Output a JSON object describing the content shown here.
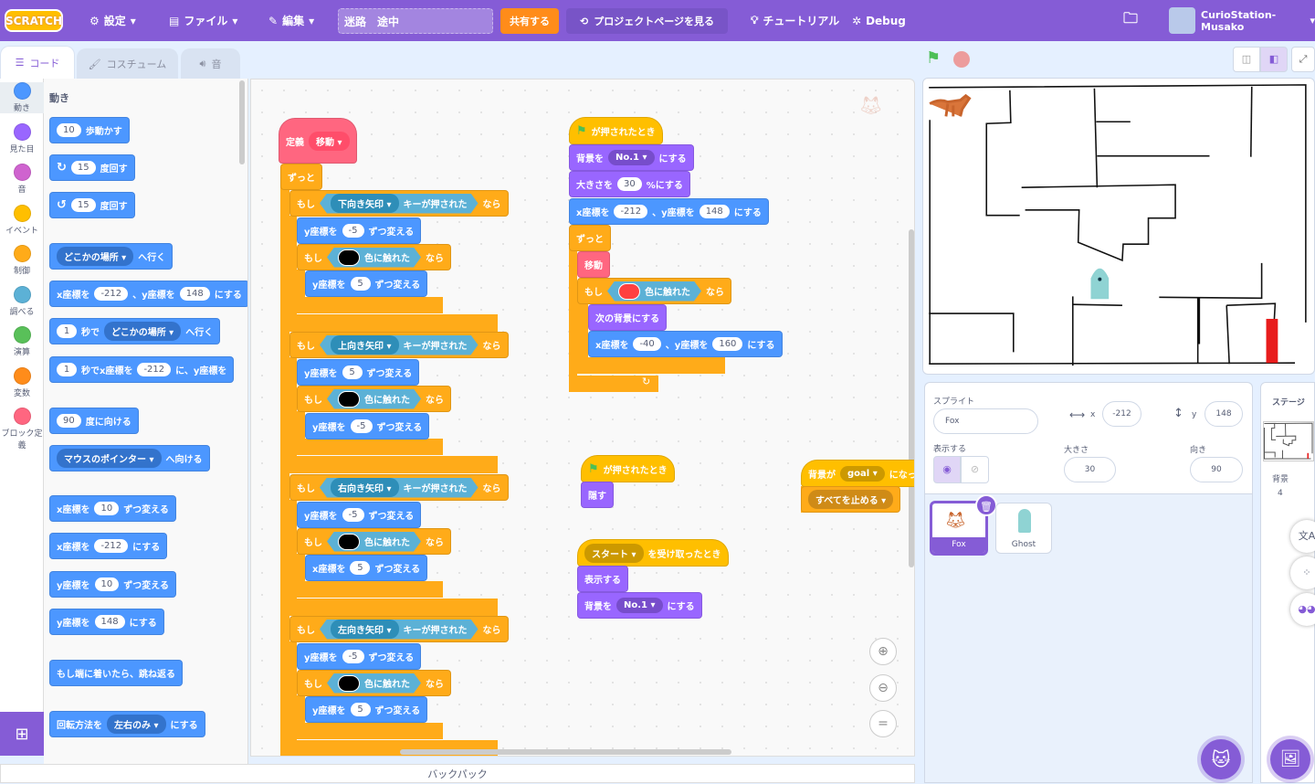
{
  "topbar": {
    "logo": "SCRATCH",
    "settings": "設定",
    "file": "ファイル",
    "edit": "編集",
    "project_title": "迷路　途中",
    "share": "共有する",
    "project_page": "プロジェクトページを見る",
    "tutorial": "チュートリアル",
    "debug": "Debug",
    "username": "CurioStation-Musako"
  },
  "tabs": {
    "code": "コード",
    "costumes": "コスチューム",
    "sounds": "音"
  },
  "categories": [
    {
      "label": "動き",
      "color": "#4c97ff"
    },
    {
      "label": "見た目",
      "color": "#9966ff"
    },
    {
      "label": "音",
      "color": "#cf63cf"
    },
    {
      "label": "イベント",
      "color": "#ffbf00"
    },
    {
      "label": "制御",
      "color": "#ffab19"
    },
    {
      "label": "調べる",
      "color": "#5cb1d6"
    },
    {
      "label": "演算",
      "color": "#59c059"
    },
    {
      "label": "変数",
      "color": "#ff8c1a"
    },
    {
      "label": "ブロック定義",
      "color": "#ff6680"
    }
  ],
  "block_colors": {
    "motion": "#4c97ff",
    "looks": "#9966ff",
    "events": "#ffbf00",
    "control": "#ffab19",
    "sensing": "#5cb1d6",
    "myblocks": "#ff6680"
  },
  "palette": {
    "section_title": "動き",
    "blocks": [
      {
        "cat": "motion",
        "parts": [
          {
            "n": "10"
          },
          {
            "t": "歩動かす"
          }
        ]
      },
      {
        "cat": "motion",
        "parts": [
          {
            "icon": "↻"
          },
          {
            "n": "15"
          },
          {
            "t": "度回す"
          }
        ]
      },
      {
        "cat": "motion",
        "parts": [
          {
            "icon": "↺"
          },
          {
            "n": "15"
          },
          {
            "t": "度回す"
          }
        ]
      },
      {
        "cat": "motion",
        "parts": [
          {
            "d": "どこかの場所"
          },
          {
            "t": "へ行く"
          }
        ]
      },
      {
        "cat": "motion",
        "parts": [
          {
            "t": "x座標を"
          },
          {
            "n": "-212"
          },
          {
            "t": "、y座標を"
          },
          {
            "n": "148"
          },
          {
            "t": "にする"
          }
        ]
      },
      {
        "cat": "motion",
        "parts": [
          {
            "n": "1"
          },
          {
            "t": "秒で"
          },
          {
            "d": "どこかの場所"
          },
          {
            "t": "へ行く"
          }
        ]
      },
      {
        "cat": "motion",
        "parts": [
          {
            "n": "1"
          },
          {
            "t": "秒でx座標を"
          },
          {
            "n": "-212"
          },
          {
            "t": "に、y座標を"
          }
        ]
      },
      {
        "cat": "motion",
        "parts": [
          {
            "n": "90"
          },
          {
            "t": "度に向ける"
          }
        ]
      },
      {
        "cat": "motion",
        "parts": [
          {
            "d": "マウスのポインター"
          },
          {
            "t": "へ向ける"
          }
        ]
      },
      {
        "cat": "motion",
        "parts": [
          {
            "t": "x座標を"
          },
          {
            "n": "10"
          },
          {
            "t": "ずつ変える"
          }
        ]
      },
      {
        "cat": "motion",
        "parts": [
          {
            "t": "x座標を"
          },
          {
            "n": "-212"
          },
          {
            "t": "にする"
          }
        ]
      },
      {
        "cat": "motion",
        "parts": [
          {
            "t": "y座標を"
          },
          {
            "n": "10"
          },
          {
            "t": "ずつ変える"
          }
        ]
      },
      {
        "cat": "motion",
        "parts": [
          {
            "t": "y座標を"
          },
          {
            "n": "148"
          },
          {
            "t": "にする"
          }
        ]
      },
      {
        "cat": "motion",
        "parts": [
          {
            "t": "もし端に着いたら、跳ね返る"
          }
        ]
      },
      {
        "cat": "motion",
        "parts": [
          {
            "t": "回転方法を"
          },
          {
            "d": "左右のみ"
          },
          {
            "t": "にする"
          }
        ]
      }
    ]
  },
  "scripts": [
    {
      "blocks": [
        {
          "cat": "myblocks",
          "hat": true,
          "parts": [
            {
              "t": "定義"
            },
            {
              "d": "移動"
            }
          ]
        },
        {
          "cat": "control",
          "parts": [
            {
              "t": "ずっと"
            }
          ]
        },
        {
          "cat": "control",
          "parts": [
            {
              "t": "もし"
            },
            {
              "b": [
                {
                  "d": "下向き矢印"
                },
                {
                  "t": "キーが押された"
                }
              ]
            },
            {
              "t": "なら"
            }
          ]
        },
        {
          "cat": "motion",
          "parts": [
            {
              "t": "y座標を"
            },
            {
              "n": "-5"
            },
            {
              "t": "ずつ変える"
            }
          ]
        },
        {
          "cat": "control",
          "parts": [
            {
              "t": "もし"
            },
            {
              "b": [
                {
                  "c": "#000000"
                },
                {
                  "t": "色に触れた"
                }
              ]
            },
            {
              "t": "なら"
            }
          ]
        },
        {
          "cat": "motion",
          "parts": [
            {
              "t": "y座標を"
            },
            {
              "n": "5"
            },
            {
              "t": "ずつ変える"
            }
          ]
        },
        {
          "cat": "control",
          "parts": [
            {
              "t": "もし"
            },
            {
              "b": [
                {
                  "d": "上向き矢印"
                },
                {
                  "t": "キーが押された"
                }
              ]
            },
            {
              "t": "なら"
            }
          ]
        },
        {
          "cat": "motion",
          "parts": [
            {
              "t": "y座標を"
            },
            {
              "n": "5"
            },
            {
              "t": "ずつ変える"
            }
          ]
        },
        {
          "cat": "control",
          "parts": [
            {
              "t": "もし"
            },
            {
              "b": [
                {
                  "c": "#000000"
                },
                {
                  "t": "色に触れた"
                }
              ]
            },
            {
              "t": "なら"
            }
          ]
        },
        {
          "cat": "motion",
          "parts": [
            {
              "t": "y座標を"
            },
            {
              "n": "-5"
            },
            {
              "t": "ずつ変える"
            }
          ]
        },
        {
          "cat": "control",
          "parts": [
            {
              "t": "もし"
            },
            {
              "b": [
                {
                  "d": "右向き矢印"
                },
                {
                  "t": "キーが押された"
                }
              ]
            },
            {
              "t": "なら"
            }
          ]
        },
        {
          "cat": "motion",
          "parts": [
            {
              "t": "y座標を"
            },
            {
              "n": "-5"
            },
            {
              "t": "ずつ変える"
            }
          ]
        },
        {
          "cat": "control",
          "parts": [
            {
              "t": "もし"
            },
            {
              "b": [
                {
                  "c": "#000000"
                },
                {
                  "t": "色に触れた"
                }
              ]
            },
            {
              "t": "なら"
            }
          ]
        },
        {
          "cat": "motion",
          "parts": [
            {
              "t": "x座標を"
            },
            {
              "n": "5"
            },
            {
              "t": "ずつ変える"
            }
          ]
        },
        {
          "cat": "control",
          "parts": [
            {
              "t": "もし"
            },
            {
              "b": [
                {
                  "d": "左向き矢印"
                },
                {
                  "t": "キーが押された"
                }
              ]
            },
            {
              "t": "なら"
            }
          ]
        },
        {
          "cat": "motion",
          "parts": [
            {
              "t": "y座標を"
            },
            {
              "n": "-5"
            },
            {
              "t": "ずつ変える"
            }
          ]
        },
        {
          "cat": "control",
          "parts": [
            {
              "t": "もし"
            },
            {
              "b": [
                {
                  "c": "#000000"
                },
                {
                  "t": "色に触れた"
                }
              ]
            },
            {
              "t": "なら"
            }
          ]
        },
        {
          "cat": "motion",
          "parts": [
            {
              "t": "y座標を"
            },
            {
              "n": "5"
            },
            {
              "t": "ずつ変える"
            }
          ]
        }
      ]
    },
    {
      "blocks": [
        {
          "cat": "events",
          "hat": true,
          "parts": [
            {
              "icon": "⚑"
            },
            {
              "t": "が押されたとき"
            }
          ]
        },
        {
          "cat": "looks",
          "parts": [
            {
              "t": "背景を"
            },
            {
              "d": "No.1"
            },
            {
              "t": "にする"
            }
          ]
        },
        {
          "cat": "looks",
          "parts": [
            {
              "t": "大きさを"
            },
            {
              "n": "30"
            },
            {
              "t": "%にする"
            }
          ]
        },
        {
          "cat": "motion",
          "parts": [
            {
              "t": "x座標を"
            },
            {
              "n": "-212"
            },
            {
              "t": "、y座標を"
            },
            {
              "n": "148"
            },
            {
              "t": "にする"
            }
          ]
        },
        {
          "cat": "control",
          "parts": [
            {
              "t": "ずっと"
            }
          ]
        },
        {
          "cat": "myblocks",
          "parts": [
            {
              "t": "移動"
            }
          ]
        },
        {
          "cat": "control",
          "parts": [
            {
              "t": "もし"
            },
            {
              "b": [
                {
                  "c": "#ff4040"
                },
                {
                  "t": "色に触れた"
                }
              ]
            },
            {
              "t": "なら"
            }
          ]
        },
        {
          "cat": "looks",
          "parts": [
            {
              "t": "次の背景にする"
            }
          ]
        },
        {
          "cat": "motion",
          "parts": [
            {
              "t": "x座標を"
            },
            {
              "n": "-40"
            },
            {
              "t": "、y座標を"
            },
            {
              "n": "160"
            },
            {
              "t": "にする"
            }
          ]
        }
      ]
    },
    {
      "blocks": [
        {
          "cat": "events",
          "hat": true,
          "parts": [
            {
              "icon": "⚑"
            },
            {
              "t": "が押されたとき"
            }
          ]
        },
        {
          "cat": "looks",
          "parts": [
            {
              "t": "隠す"
            }
          ]
        }
      ]
    },
    {
      "blocks": [
        {
          "cat": "events",
          "hat": true,
          "parts": [
            {
              "d": "スタート"
            },
            {
              "t": "を受け取ったとき"
            }
          ]
        },
        {
          "cat": "looks",
          "parts": [
            {
              "t": "表示する"
            }
          ]
        },
        {
          "cat": "looks",
          "parts": [
            {
              "t": "背景を"
            },
            {
              "d": "No.1"
            },
            {
              "t": "にする"
            }
          ]
        }
      ]
    },
    {
      "blocks": [
        {
          "cat": "events",
          "hat": true,
          "parts": [
            {
              "t": "背景が"
            },
            {
              "d": "goal"
            },
            {
              "t": "になったとき"
            }
          ]
        },
        {
          "cat": "control",
          "parts": [
            {
              "d": "すべてを止める"
            }
          ]
        }
      ]
    }
  ],
  "backpack": "バックパック",
  "sprite_info": {
    "sprite_label": "スプライト",
    "name": "Fox",
    "x_label": "x",
    "x": "-212",
    "y_label": "y",
    "y": "148",
    "show_label": "表示する",
    "size_label": "大きさ",
    "size": "30",
    "direction_label": "向き",
    "direction": "90",
    "visible": true
  },
  "sprites": [
    {
      "name": "Fox",
      "selected": true
    },
    {
      "name": "Ghost",
      "selected": false
    }
  ],
  "stage_pane": {
    "title": "ステージ",
    "backdrops_label": "背景",
    "backdrops_count": "4"
  }
}
